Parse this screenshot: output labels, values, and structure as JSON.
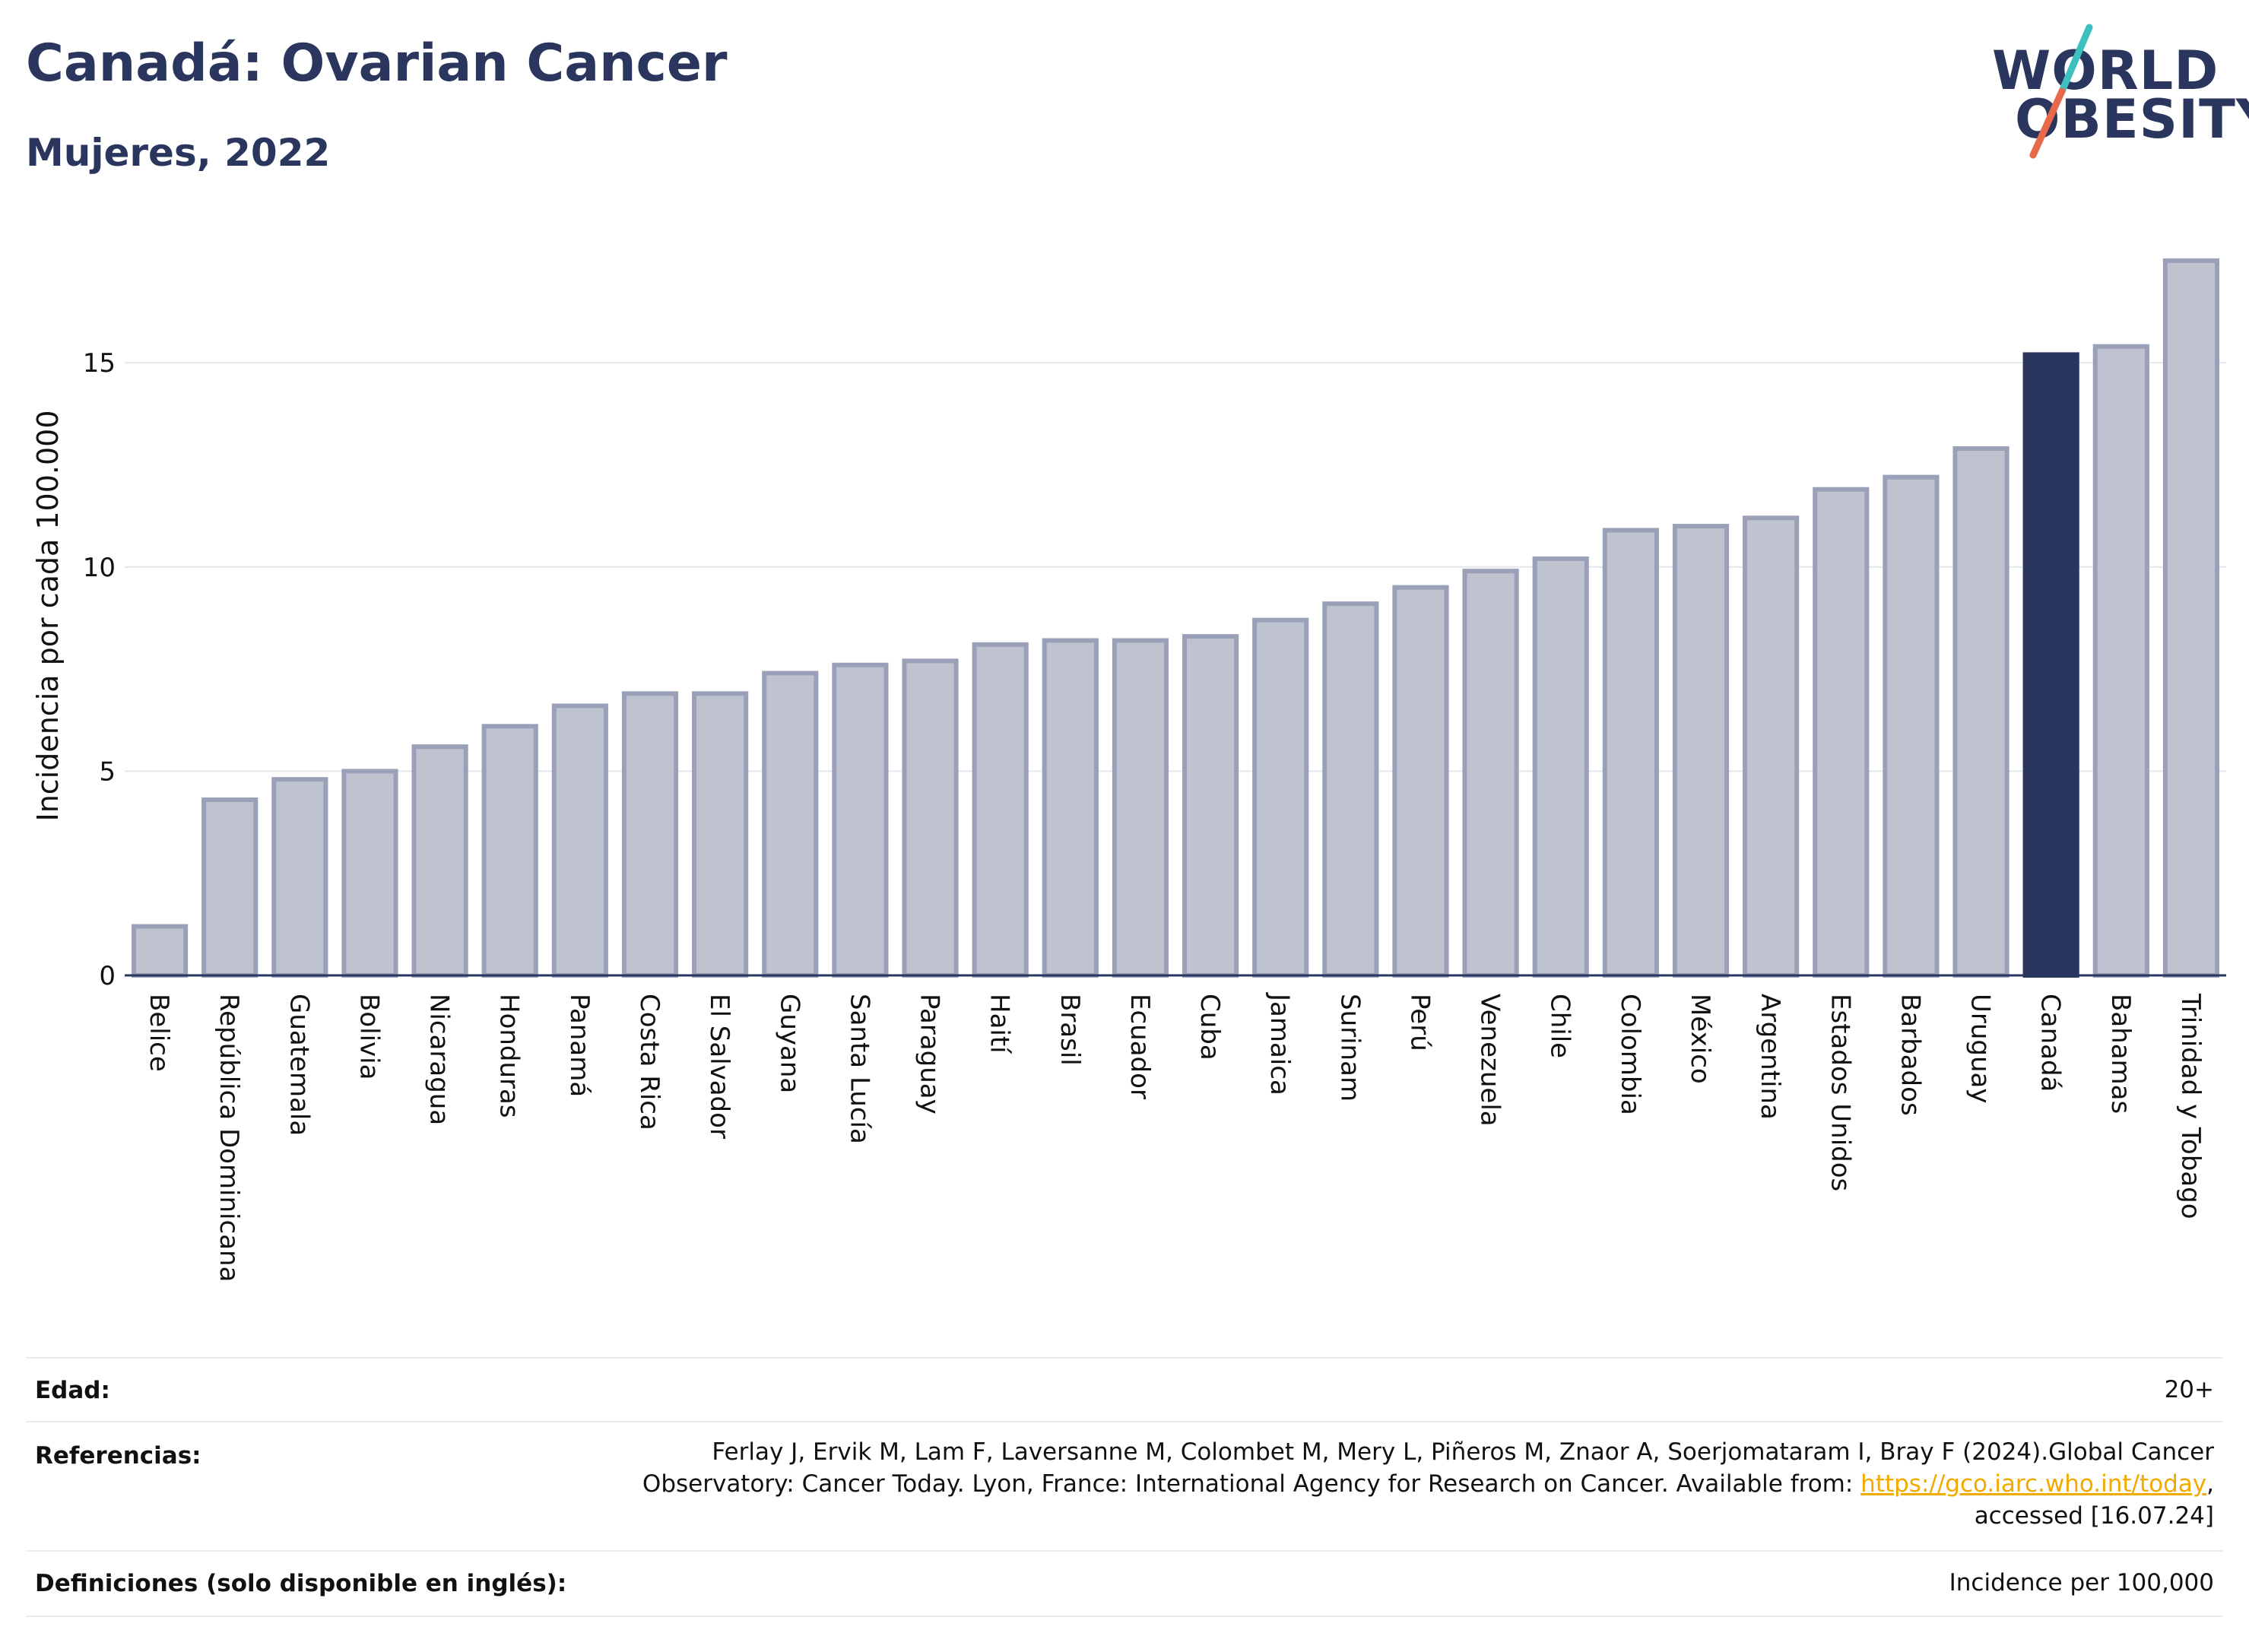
{
  "header": {
    "title": "Canadá: Ovarian Cancer",
    "subtitle": "Mujeres, 2022"
  },
  "logo": {
    "line1": "WORLD",
    "line2": "OBESITY",
    "brand_color": "#2b365f",
    "slash_colors": [
      "#3cc0c0",
      "#e8684a"
    ]
  },
  "chart_data": {
    "type": "bar",
    "ylabel": "Incidencia por cada 100.000",
    "xlabel": "",
    "ylim": [
      0,
      18
    ],
    "yticks": [
      0,
      5,
      10,
      15
    ],
    "grid": true,
    "highlight": "Canadá",
    "colors": {
      "bar_fill": "#bfc3d0",
      "bar_stroke": "#9aa0b8",
      "highlight_fill": "#2b365f",
      "grid": "#e5e7ef",
      "axis": "#2b365f"
    },
    "categories": [
      "Belice",
      "República Dominicana",
      "Guatemala",
      "Bolivia",
      "Nicaragua",
      "Honduras",
      "Panamá",
      "Costa Rica",
      "El Salvador",
      "Guyana",
      "Santa Lucía",
      "Paraguay",
      "Haití",
      "Brasil",
      "Ecuador",
      "Cuba",
      "Jamaica",
      "Surinam",
      "Perú",
      "Venezuela",
      "Chile",
      "Colombia",
      "México",
      "Argentina",
      "Estados Unidos",
      "Barbados",
      "Uruguay",
      "Canadá",
      "Bahamas",
      "Trinidad y Tobago"
    ],
    "values": [
      1.2,
      4.3,
      4.8,
      5.0,
      5.6,
      6.1,
      6.6,
      6.9,
      6.9,
      7.4,
      7.6,
      7.7,
      8.1,
      8.2,
      8.2,
      8.3,
      8.7,
      9.1,
      9.5,
      9.9,
      10.2,
      10.9,
      11.0,
      11.2,
      11.9,
      12.2,
      12.9,
      15.2,
      15.4,
      17.5
    ]
  },
  "info": {
    "age_label": "Edad:",
    "age_value": "20+",
    "ref_label": "Referencias:",
    "ref_text_1": "Ferlay J, Ervik M, Lam F, Laversanne M, Colombet M, Mery L, Piñeros M, Znaor A, Soerjomataram I, Bray F (2024).Global Cancer",
    "ref_text_2": "Observatory: Cancer Today. Lyon, France: International Agency for Research on Cancer. Available from: ",
    "ref_link": "https://gco.iarc.who.int/today",
    "ref_text_3": ",",
    "ref_text_4": "accessed [16.07.24]",
    "def_label": "Definiciones (solo disponible en inglés):",
    "def_value": "Incidence per 100,000"
  }
}
